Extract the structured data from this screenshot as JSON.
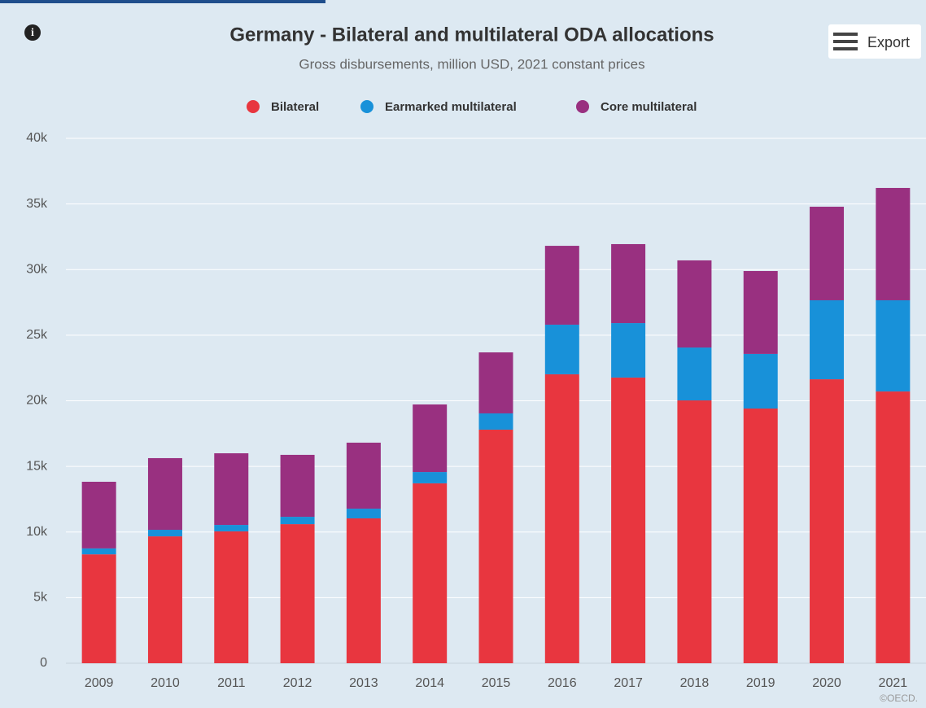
{
  "chart_data": {
    "type": "stacked_bar",
    "title": "Germany - Bilateral and multilateral ODA allocations",
    "subtitle": "Gross disbursements, million USD, 2021 constant prices",
    "export_label": "Export",
    "credit": "©OECD.",
    "categories": [
      "2009",
      "2010",
      "2011",
      "2012",
      "2013",
      "2014",
      "2015",
      "2016",
      "2017",
      "2018",
      "2019",
      "2020",
      "2021"
    ],
    "series": [
      {
        "name": "Bilateral",
        "color": "#e8363f",
        "values": [
          8300,
          9670,
          10050,
          10600,
          11040,
          13710,
          17800,
          22020,
          21770,
          20030,
          19410,
          21640,
          20710
        ]
      },
      {
        "name": "Earmarked multilateral",
        "color": "#1891d9",
        "values": [
          450,
          500,
          490,
          560,
          740,
          860,
          1240,
          3780,
          4150,
          4030,
          4160,
          6020,
          6950
        ]
      },
      {
        "name": "Core multilateral",
        "color": "#993080",
        "values": [
          5080,
          5460,
          5460,
          4720,
          5030,
          5150,
          4650,
          6010,
          6020,
          6640,
          6320,
          7130,
          8560
        ]
      }
    ],
    "ylim": [
      0,
      40000
    ],
    "yticks": [
      0,
      {
        "value": 5000,
        "label": "5k"
      },
      {
        "value": 10000,
        "label": "10k"
      },
      {
        "value": 15000,
        "label": "15k"
      },
      {
        "value": 20000,
        "label": "20k"
      },
      {
        "value": 25000,
        "label": "25k"
      },
      {
        "value": 30000,
        "label": "30k"
      },
      {
        "value": 35000,
        "label": "35k"
      },
      {
        "value": 40000,
        "label": "40k"
      }
    ],
    "grid": true,
    "legend": "top"
  }
}
